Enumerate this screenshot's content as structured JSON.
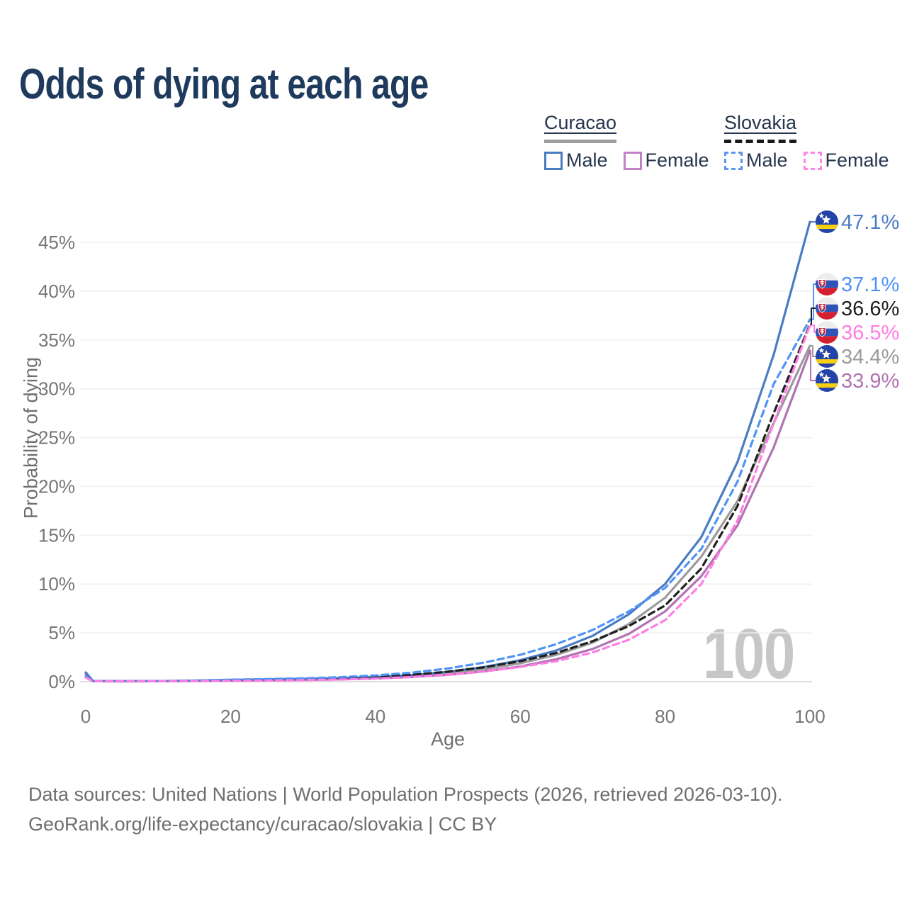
{
  "title": "Odds of dying at each age",
  "legend": {
    "groups": [
      {
        "name": "Curacao",
        "line_style": "solid",
        "line_color": "#9e9e9e",
        "items": [
          {
            "label": "Male",
            "box_style": "solid",
            "color": "#4a7cc3"
          },
          {
            "label": "Female",
            "box_style": "solid",
            "color": "#c083c8"
          }
        ]
      },
      {
        "name": "Slovakia",
        "line_style": "dashed",
        "line_color": "#1a1a1a",
        "items": [
          {
            "label": "Male",
            "box_style": "dashed",
            "color": "#5b95f0"
          },
          {
            "label": "Female",
            "box_style": "dashed",
            "color": "#ff85e8"
          }
        ]
      }
    ]
  },
  "chart_data": {
    "type": "line",
    "title": "Odds of dying at each age",
    "xlabel": "Age",
    "ylabel": "Probability of dying",
    "xlim": [
      0,
      100
    ],
    "ylim": [
      0,
      47.5
    ],
    "x_ticks": [
      0,
      20,
      40,
      60,
      80,
      100
    ],
    "y_ticks": [
      0,
      5,
      10,
      15,
      20,
      25,
      30,
      35,
      40,
      45
    ],
    "grid": "horizontal",
    "legend_position": "top-right",
    "watermark": "100",
    "x": [
      0,
      1,
      5,
      10,
      15,
      20,
      25,
      30,
      35,
      40,
      45,
      50,
      55,
      60,
      65,
      70,
      75,
      80,
      85,
      90,
      95,
      100
    ],
    "series": [
      {
        "id": "curacao-male",
        "name": "Curacao Male",
        "country": "Curacao",
        "sex": "Male",
        "color": "#4a7cc3",
        "dash": false,
        "flag": "curacao",
        "end_label": "47.1%",
        "end_value": 47.1,
        "values": [
          0.95,
          0.07,
          0.05,
          0.06,
          0.11,
          0.18,
          0.23,
          0.28,
          0.36,
          0.48,
          0.68,
          1.0,
          1.5,
          2.2,
          3.2,
          4.7,
          6.9,
          10.0,
          14.8,
          22.5,
          33.5,
          47.1
        ]
      },
      {
        "id": "slovakia-male",
        "name": "Slovakia Male",
        "country": "Slovakia",
        "sex": "Male",
        "color": "#4f93f7",
        "dash": true,
        "flag": "slovakia",
        "end_label": "37.1%",
        "end_value": 37.1,
        "values": [
          0.55,
          0.05,
          0.04,
          0.05,
          0.11,
          0.2,
          0.27,
          0.34,
          0.46,
          0.64,
          0.92,
          1.35,
          1.95,
          2.75,
          3.85,
          5.3,
          7.2,
          9.6,
          13.6,
          20.5,
          30.5,
          37.1
        ]
      },
      {
        "id": "slovakia-total",
        "name": "Slovakia",
        "country": "Slovakia",
        "sex": "Both",
        "color": "#1f1f1f",
        "dash": true,
        "flag": "slovakia",
        "end_label": "36.6%",
        "end_value": 36.6,
        "values": [
          0.48,
          0.04,
          0.03,
          0.04,
          0.08,
          0.14,
          0.19,
          0.25,
          0.34,
          0.48,
          0.7,
          1.02,
          1.47,
          2.1,
          2.95,
          4.15,
          5.7,
          7.8,
          11.6,
          18.0,
          27.5,
          36.6
        ]
      },
      {
        "id": "slovakia-female",
        "name": "Slovakia Female",
        "country": "Slovakia",
        "sex": "Female",
        "color": "#ff7de5",
        "dash": true,
        "flag": "slovakia",
        "end_label": "36.5%",
        "end_value": 36.5,
        "values": [
          0.42,
          0.04,
          0.03,
          0.04,
          0.06,
          0.08,
          0.11,
          0.15,
          0.22,
          0.32,
          0.48,
          0.72,
          1.05,
          1.5,
          2.1,
          3.0,
          4.3,
          6.3,
          10.0,
          16.5,
          26.5,
          36.5
        ]
      },
      {
        "id": "curacao-total",
        "name": "Curacao",
        "country": "Curacao",
        "sex": "Both",
        "color": "#9b9b9b",
        "dash": false,
        "flag": "curacao",
        "end_label": "34.4%",
        "end_value": 34.4,
        "values": [
          0.85,
          0.06,
          0.04,
          0.05,
          0.09,
          0.14,
          0.18,
          0.23,
          0.3,
          0.41,
          0.58,
          0.85,
          1.27,
          1.88,
          2.75,
          4.0,
          5.9,
          8.6,
          12.8,
          18.5,
          26.5,
          34.4
        ]
      },
      {
        "id": "curacao-female",
        "name": "Curacao Female",
        "country": "Curacao",
        "sex": "Female",
        "color": "#b273b2",
        "dash": false,
        "flag": "curacao",
        "end_label": "33.9%",
        "end_value": 33.9,
        "values": [
          0.8,
          0.06,
          0.04,
          0.04,
          0.07,
          0.1,
          0.13,
          0.17,
          0.23,
          0.33,
          0.48,
          0.7,
          1.05,
          1.55,
          2.3,
          3.35,
          4.9,
          7.2,
          10.8,
          16.0,
          24.0,
          33.9
        ]
      }
    ],
    "flag_colors": {
      "curacao": {
        "field": "#2443a6",
        "stripe": "#f5cf10",
        "star": "#ffffff"
      },
      "slovakia": {
        "white": "#ededed",
        "blue": "#3053b8",
        "red": "#d32030",
        "shield": "#d22030",
        "cross": "#ffffff",
        "hill": "#3a5fae"
      }
    }
  },
  "footer": {
    "line1": "Data sources: United Nations | World Population Prospects (2026, retrieved 2026-03-10).",
    "line2": "GeoRank.org/life-expectancy/curacao/slovakia | CC BY"
  }
}
